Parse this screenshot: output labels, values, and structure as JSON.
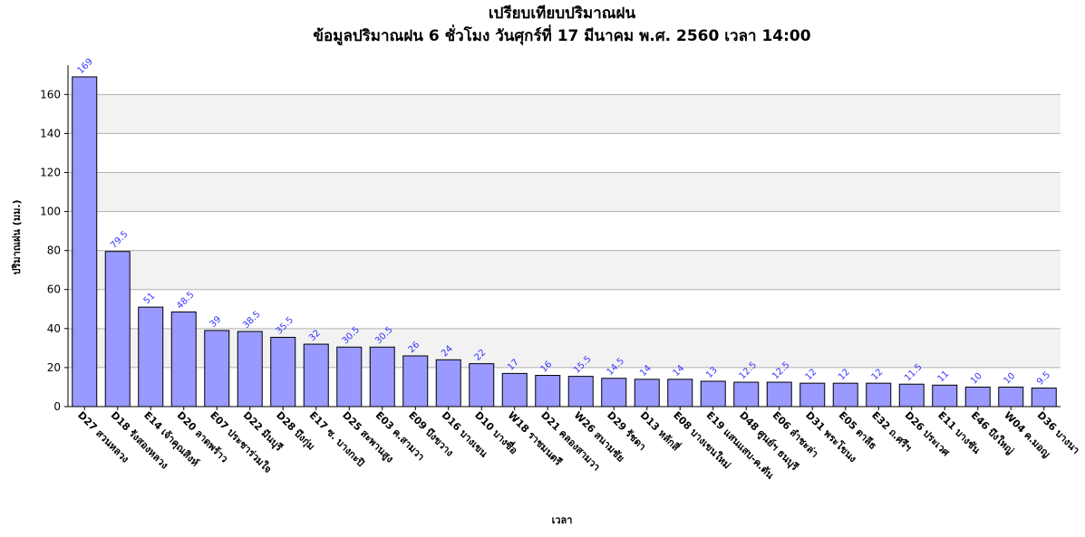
{
  "chart_data": {
    "type": "bar",
    "title": "เปรียบเทียบปริมาณฝน",
    "subtitle": "ข้อมูลปริมาณฝน 6 ชั่วโมง วันศุกร์ที่ 17 มีนาคม พ.ศ. 2560 เวลา 14:00",
    "y_label": "ปริมาณฝน (มม.)",
    "x_label": "เวลา",
    "categories": [
      "D27 สวนหลวง",
      "D18 รังสองหลวง",
      "E14 เจ้าคุณสิงห์",
      "D20 ลาดพร้าว",
      "E07 ประชาร่วมใจ",
      "D22 มีนบุรี",
      "D28 บึงกุ่ม",
      "E17 ซ. บางกะปิ",
      "D25 สะพานสูง",
      "E03 ค.สามวา",
      "E09 บึงขวาง",
      "D16 บางเขน",
      "D10 บางซื่อ",
      "W18 ราชมนตรี",
      "D21 คลองสามวา",
      "W26 สนามชัย",
      "D29 รัชดา",
      "D13 หลักสี่",
      "E08 บางเขนใหม่",
      "E19 แสนแสบ-ค.ตัน",
      "D48 ศูนย์ฯ ธนบุรี",
      "E06 ลำชะล่า",
      "D31 พระโขนง",
      "E05 ตาลีธ",
      "E32 ถ.ศรีฯ",
      "D26 ประเวศ",
      "E11 บางชัน",
      "E46 บึงใหญ่",
      "W04 ค.มอญ",
      "D36 บางนา"
    ],
    "values": [
      169,
      79.5,
      51,
      48.5,
      39,
      38.5,
      35.5,
      32,
      30.5,
      30.5,
      26,
      24,
      22,
      17,
      16,
      15.5,
      14.5,
      14,
      14,
      13,
      12.5,
      12.5,
      12,
      12,
      12,
      11.5,
      11,
      10,
      10,
      9.5
    ],
    "color": "#9999ff",
    "ylim": [
      0,
      175
    ],
    "yticks": [
      0,
      20,
      40,
      60,
      80,
      100,
      120,
      140,
      160
    ],
    "grid": true
  }
}
